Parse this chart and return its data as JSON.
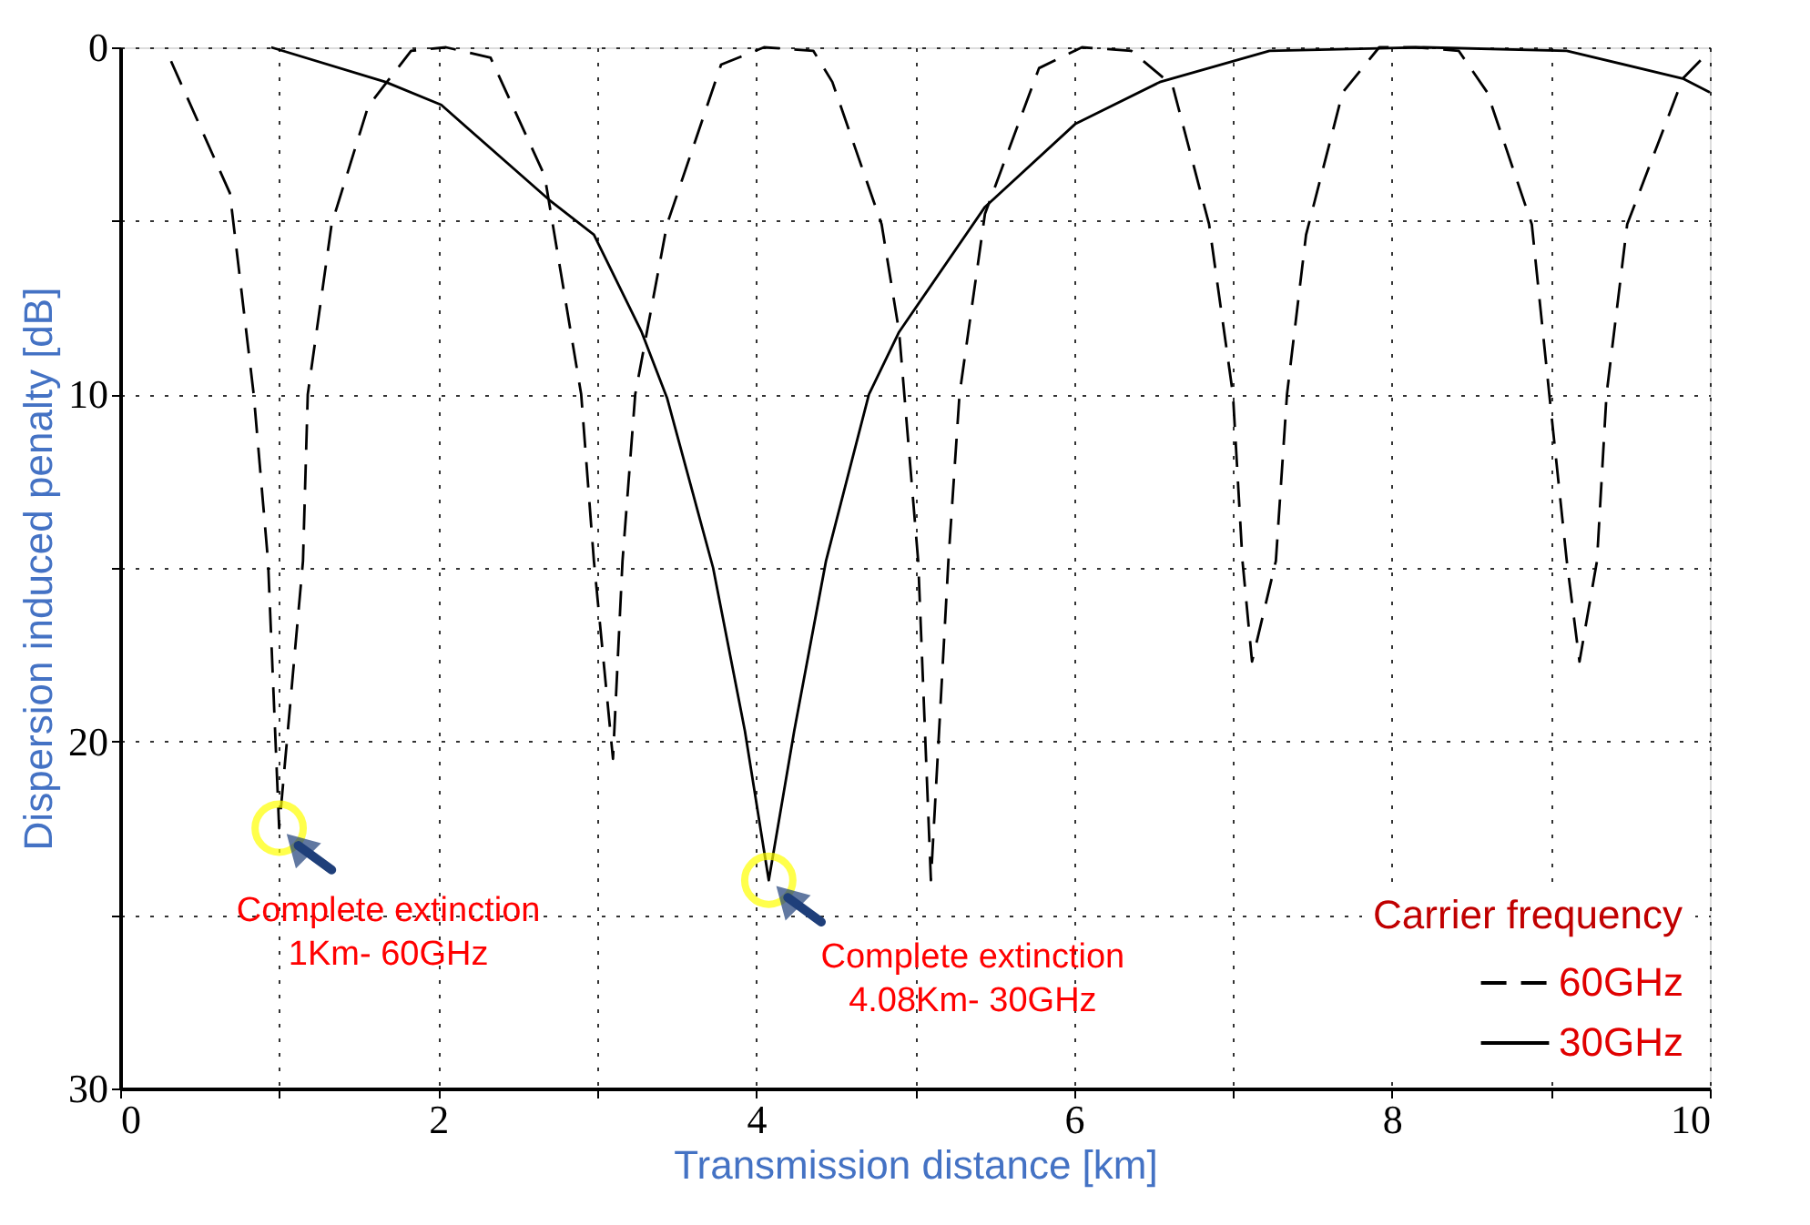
{
  "chart_data": {
    "type": "line",
    "xlabel": "Transmission distance [km]",
    "ylabel": "Dispersion induced  penalty [dB]",
    "legend_title": "Carrier frequency",
    "legend": "bottom right",
    "grid": true,
    "xlim": [
      0,
      10
    ],
    "ylim": [
      30,
      0
    ],
    "xticks": [
      0,
      {
        "value": 1,
        "label": null
      },
      2,
      {
        "value": 3,
        "label": null
      },
      4,
      {
        "value": 5,
        "label": null
      },
      6,
      {
        "value": 7,
        "label": null
      },
      8,
      {
        "value": 9,
        "label": null
      },
      10
    ],
    "yticks": [
      0,
      {
        "value": 5,
        "label": null
      },
      10,
      {
        "value": 15,
        "label": null
      },
      20,
      {
        "value": 25,
        "label": null
      },
      30
    ],
    "series": [
      {
        "name": "60GHz",
        "color": "#000000",
        "line_style": "dashed",
        "x": [
          0.32,
          0.69,
          0.84,
          0.93,
          1.0,
          1.15,
          1.18,
          1.33,
          1.56,
          1.83,
          2.05,
          2.33,
          2.67,
          2.9,
          2.98,
          3.1,
          3.16,
          3.24,
          3.44,
          3.78,
          4.05,
          4.36,
          4.48,
          4.79,
          4.9,
          5.02,
          5.1,
          5.21,
          5.28,
          5.44,
          5.78,
          6.05,
          6.36,
          6.62,
          6.85,
          7.0,
          7.06,
          7.12,
          7.27,
          7.34,
          7.46,
          7.69,
          7.92,
          8.15,
          8.42,
          8.6,
          8.88,
          8.99,
          9.1,
          9.18,
          9.29,
          9.35,
          9.48,
          9.68,
          9.83,
          10.0
        ],
        "values": [
          0.4,
          4.2,
          10,
          14.8,
          22.5,
          14.8,
          10,
          5.1,
          1.7,
          0.1,
          0,
          0.3,
          3.7,
          10,
          14.8,
          20.5,
          14.8,
          10,
          5.1,
          0.5,
          0,
          0.1,
          1.0,
          5.1,
          8.2,
          14.8,
          24,
          14.8,
          10,
          4.8,
          0.6,
          0,
          0.1,
          1.1,
          5.1,
          10,
          14.8,
          17.7,
          14.8,
          10,
          5.4,
          1.3,
          0,
          0,
          0.1,
          1.3,
          5.1,
          10,
          14.8,
          17.7,
          14.8,
          10,
          5.1,
          2.7,
          0.9,
          0.1
        ]
      },
      {
        "name": "30GHz",
        "color": "#000000",
        "line_style": "solid",
        "x": [
          0.95,
          1.67,
          2.02,
          2.7,
          2.98,
          3.28,
          3.44,
          3.73,
          3.93,
          4.08,
          4.24,
          4.44,
          4.71,
          4.9,
          5.44,
          6.01,
          6.54,
          7.23,
          8.2,
          9.1,
          9.83,
          10.0
        ],
        "values": [
          0,
          1.0,
          1.66,
          4.4,
          5.4,
          8.2,
          10.1,
          15,
          19.7,
          24,
          19.7,
          14.8,
          10,
          8.2,
          4.6,
          2.2,
          1.0,
          0.1,
          0,
          0.1,
          0.9,
          1.3
        ]
      }
    ],
    "annotations": [
      {
        "text": "Complete extinction\n1Km- 60GHz",
        "x": 1.0,
        "y": 22.5
      },
      {
        "text": "Complete extinction\n4.08Km- 30GHz",
        "x": 4.08,
        "y": 24
      }
    ]
  }
}
